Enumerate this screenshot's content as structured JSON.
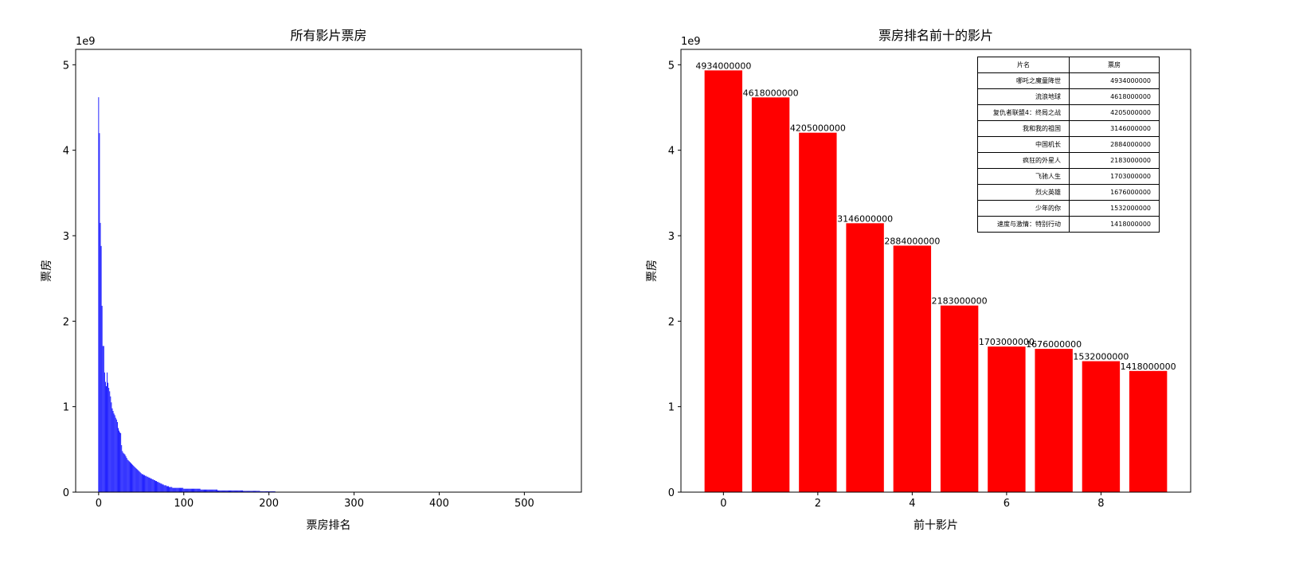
{
  "chart_data": [
    {
      "type": "bar",
      "title": "所有影片票房",
      "xlabel": "票房排名",
      "ylabel": "票房",
      "y_offset_label": "1e9",
      "y_unit_multiplier": 1000000000,
      "color": "#0000ff",
      "xlim": [
        -27,
        567
      ],
      "ylim": [
        0,
        5.18
      ],
      "xticks": [
        0,
        100,
        200,
        300,
        400,
        500
      ],
      "yticks": [
        0,
        1,
        2,
        3,
        4,
        5
      ],
      "grid": false,
      "values": [
        4.62,
        4.2,
        3.15,
        2.88,
        2.18,
        1.71,
        1.71,
        1.4,
        1.29,
        1.24,
        1.4,
        1.28,
        1.22,
        1.18,
        1.12,
        1.05,
        0.98,
        0.95,
        0.92,
        0.9,
        0.87,
        0.85,
        0.82,
        0.75,
        0.72,
        0.7,
        0.69,
        0.55,
        0.48,
        0.46,
        0.45,
        0.44,
        0.42,
        0.4,
        0.38,
        0.37,
        0.36,
        0.35,
        0.34,
        0.33,
        0.32,
        0.31,
        0.3,
        0.29,
        0.28,
        0.27,
        0.26,
        0.25,
        0.24,
        0.23,
        0.22,
        0.21,
        0.21,
        0.2,
        0.2,
        0.19,
        0.19,
        0.18,
        0.18,
        0.17,
        0.17,
        0.16,
        0.16,
        0.15,
        0.15,
        0.14,
        0.14,
        0.13,
        0.13,
        0.12,
        0.12,
        0.11,
        0.11,
        0.1,
        0.1,
        0.09,
        0.09,
        0.08,
        0.08,
        0.08,
        0.07,
        0.07,
        0.07,
        0.06,
        0.06,
        0.06,
        0.06,
        0.05,
        0.05,
        0.05,
        0.05,
        0.05,
        0.05,
        0.05,
        0.05,
        0.05,
        0.05,
        0.05,
        0.05,
        0.05,
        0.04,
        0.04,
        0.04,
        0.04,
        0.04,
        0.04,
        0.04,
        0.04,
        0.04,
        0.04,
        0.04,
        0.04,
        0.04,
        0.04,
        0.04,
        0.04,
        0.04,
        0.04,
        0.04,
        0.04,
        0.03,
        0.03,
        0.03,
        0.03,
        0.03,
        0.03,
        0.03,
        0.03,
        0.03,
        0.03,
        0.03,
        0.03,
        0.03,
        0.03,
        0.03,
        0.03,
        0.03,
        0.03,
        0.03,
        0.03,
        0.02,
        0.02,
        0.02,
        0.02,
        0.02,
        0.02,
        0.02,
        0.02,
        0.02,
        0.02,
        0.02,
        0.02,
        0.02,
        0.02,
        0.02,
        0.02,
        0.02,
        0.02,
        0.02,
        0.02,
        0.02,
        0.02,
        0.02,
        0.02,
        0.02,
        0.02,
        0.02,
        0.02,
        0.02,
        0.02,
        0.015,
        0.015,
        0.015,
        0.015,
        0.015,
        0.015,
        0.015,
        0.015,
        0.015,
        0.015,
        0.015,
        0.015,
        0.015,
        0.015,
        0.015,
        0.015,
        0.015,
        0.015,
        0.015,
        0.015,
        0.01,
        0.01,
        0.01,
        0.01,
        0.01,
        0.01,
        0.01,
        0.01,
        0.01,
        0.01,
        0.01,
        0.01,
        0.01,
        0.01,
        0.01,
        0.01,
        0.01,
        0.01
      ]
    },
    {
      "type": "bar",
      "title": "票房排名前十的影片",
      "xlabel": "前十影片",
      "ylabel": "票房",
      "y_offset_label": "1e9",
      "y_unit_multiplier": 1000000000,
      "color": "#ff0000",
      "xlim": [
        -0.9,
        9.9
      ],
      "ylim": [
        0,
        5.18
      ],
      "xticks": [
        0,
        2,
        4,
        6,
        8
      ],
      "yticks": [
        0,
        1,
        2,
        3,
        4,
        5
      ],
      "grid": false,
      "categories": [
        0,
        1,
        2,
        3,
        4,
        5,
        6,
        7,
        8,
        9
      ],
      "values": [
        4934000000,
        4618000000,
        4205000000,
        3146000000,
        2884000000,
        2183000000,
        1703000000,
        1676000000,
        1532000000,
        1418000000
      ],
      "data_labels": [
        "4934000000",
        "4618000000",
        "4205000000",
        "3146000000",
        "2884000000",
        "2183000000",
        "1703000000",
        "1676000000",
        "1532000000",
        "1418000000"
      ],
      "table": {
        "headers": [
          "片名",
          "票房"
        ],
        "rows": [
          [
            "哪吒之魔童降世",
            "4934000000"
          ],
          [
            "流浪地球",
            "4618000000"
          ],
          [
            "复仇者联盟4：终局之战",
            "4205000000"
          ],
          [
            "我和我的祖国",
            "3146000000"
          ],
          [
            "中国机长",
            "2884000000"
          ],
          [
            "疯狂的外星人",
            "2183000000"
          ],
          [
            "飞驰人生",
            "1703000000"
          ],
          [
            "烈火英雄",
            "1676000000"
          ],
          [
            "少年的你",
            "1532000000"
          ],
          [
            "速度与激情：特别行动",
            "1418000000"
          ]
        ]
      }
    }
  ]
}
